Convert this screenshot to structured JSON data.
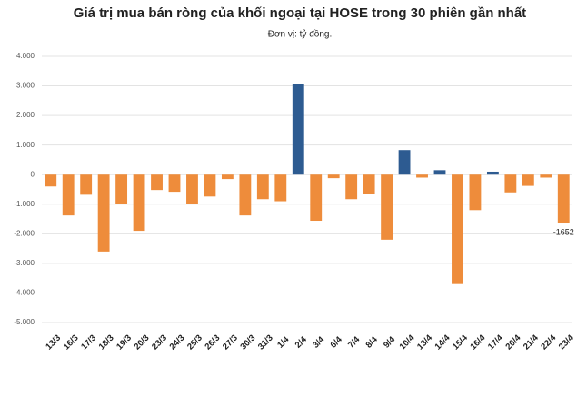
{
  "chart_data": {
    "type": "bar",
    "title": "Giá trị mua bán ròng của khối ngoại tại HOSE trong 30 phiên gần nhất",
    "subtitle": "Đơn vị: tỷ đồng.",
    "categories": [
      "13/3",
      "16/3",
      "17/3",
      "18/3",
      "19/3",
      "20/3",
      "23/3",
      "24/3",
      "25/3",
      "26/3",
      "27/3",
      "30/3",
      "31/3",
      "1/4",
      "2/4",
      "3/4",
      "6/4",
      "7/4",
      "8/4",
      "9/4",
      "10/4",
      "13/4",
      "14/4",
      "15/4",
      "16/4",
      "17/4",
      "20/4",
      "21/4",
      "22/4",
      "23/4"
    ],
    "values": [
      -400,
      -1380,
      -680,
      -2600,
      -1000,
      -1900,
      -520,
      -580,
      -1000,
      -740,
      -150,
      -1380,
      -830,
      -900,
      3050,
      -1560,
      -120,
      -830,
      -650,
      -2200,
      830,
      -100,
      150,
      -3700,
      -1200,
      100,
      -600,
      -380,
      -100,
      -1652
    ],
    "value_labels": [
      null,
      null,
      null,
      null,
      null,
      null,
      null,
      null,
      null,
      null,
      null,
      null,
      null,
      null,
      null,
      null,
      null,
      null,
      null,
      null,
      null,
      null,
      null,
      null,
      null,
      null,
      null,
      null,
      null,
      "-1652"
    ],
    "positive_color": "#2d5b91",
    "negative_color": "#ee8c3b",
    "ylim": [
      -5000,
      4000
    ],
    "yticks": [
      {
        "value": 4000,
        "label": "4.000"
      },
      {
        "value": 3000,
        "label": "3.000"
      },
      {
        "value": 2000,
        "label": "2.000"
      },
      {
        "value": 1000,
        "label": "1.000"
      },
      0,
      {
        "value": -1000,
        "label": "-1.000"
      },
      {
        "value": -2000,
        "label": "-2.000"
      },
      {
        "value": -3000,
        "label": "-3.000"
      },
      {
        "value": -4000,
        "label": "-4.000"
      },
      {
        "value": -5000,
        "label": "-5.000"
      }
    ],
    "grid": true
  }
}
